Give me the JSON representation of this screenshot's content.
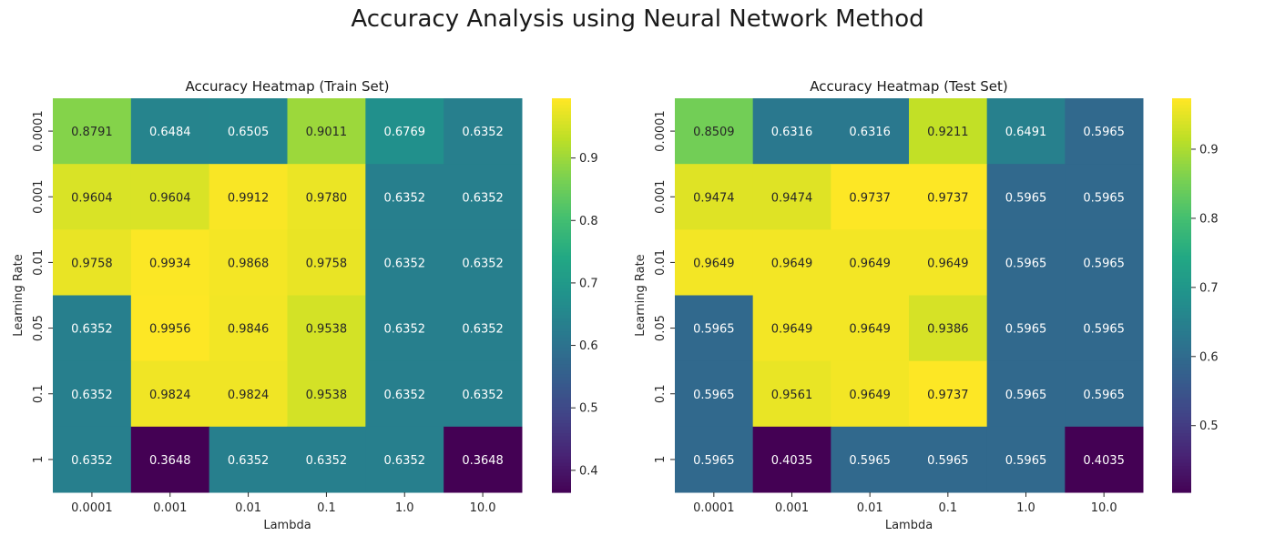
{
  "suptitle": "Accuracy Analysis using Neural Network Method",
  "chart_data": [
    {
      "type": "heatmap",
      "title": "Accuracy Heatmap (Train Set)",
      "xlabel": "Lambda",
      "ylabel": "Learning Rate",
      "x_categories": [
        "0.0001",
        "0.001",
        "0.01",
        "0.1",
        "1.0",
        "10.0"
      ],
      "y_categories": [
        "0.0001",
        "0.001",
        "0.01",
        "0.05",
        "0.1",
        "1"
      ],
      "values": [
        [
          0.8791,
          0.6484,
          0.6505,
          0.9011,
          0.6769,
          0.6352
        ],
        [
          0.9604,
          0.9604,
          0.9912,
          0.978,
          0.6352,
          0.6352
        ],
        [
          0.9758,
          0.9934,
          0.9868,
          0.9758,
          0.6352,
          0.6352
        ],
        [
          0.6352,
          0.9956,
          0.9846,
          0.9538,
          0.6352,
          0.6352
        ],
        [
          0.6352,
          0.9824,
          0.9824,
          0.9538,
          0.6352,
          0.6352
        ],
        [
          0.6352,
          0.3648,
          0.6352,
          0.6352,
          0.6352,
          0.3648
        ]
      ],
      "colorbar": {
        "min": 0.3648,
        "max": 0.9956,
        "ticks": [
          "0.4",
          "0.5",
          "0.6",
          "0.7",
          "0.8",
          "0.9"
        ]
      },
      "colormap": "viridis"
    },
    {
      "type": "heatmap",
      "title": "Accuracy Heatmap (Test Set)",
      "xlabel": "Lambda",
      "ylabel": "Learning Rate",
      "x_categories": [
        "0.0001",
        "0.001",
        "0.01",
        "0.1",
        "1.0",
        "10.0"
      ],
      "y_categories": [
        "0.0001",
        "0.001",
        "0.01",
        "0.05",
        "0.1",
        "1"
      ],
      "values": [
        [
          0.8509,
          0.6316,
          0.6316,
          0.9211,
          0.6491,
          0.5965
        ],
        [
          0.9474,
          0.9474,
          0.9737,
          0.9737,
          0.5965,
          0.5965
        ],
        [
          0.9649,
          0.9649,
          0.9649,
          0.9649,
          0.5965,
          0.5965
        ],
        [
          0.5965,
          0.9649,
          0.9649,
          0.9386,
          0.5965,
          0.5965
        ],
        [
          0.5965,
          0.9561,
          0.9649,
          0.9737,
          0.5965,
          0.5965
        ],
        [
          0.5965,
          0.4035,
          0.5965,
          0.5965,
          0.5965,
          0.4035
        ]
      ],
      "colorbar": {
        "min": 0.4035,
        "max": 0.9737,
        "ticks": [
          "0.5",
          "0.6",
          "0.7",
          "0.8",
          "0.9"
        ]
      },
      "colormap": "viridis"
    }
  ]
}
